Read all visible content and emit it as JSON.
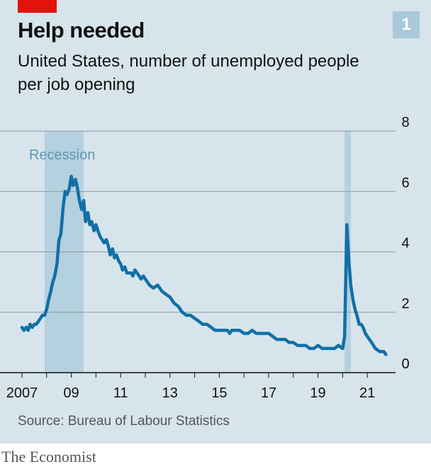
{
  "header": {
    "title": "Help needed",
    "subtitle": "United States, number of unemployed people per job opening",
    "badge": "1"
  },
  "footer": {
    "source": "Source: Bureau of Labour Statistics",
    "brand": "The Economist"
  },
  "colors": {
    "background": "#d7e4ec",
    "line": "#1170a6",
    "recession": "#a9c9da",
    "accent_red": "#e3120b"
  },
  "chart_data": {
    "type": "line",
    "title": "Help needed",
    "subtitle": "United States, number of unemployed people per job opening",
    "xlabel": "",
    "ylabel": "",
    "xlim": [
      2006.8,
      2021.8
    ],
    "ylim": [
      0,
      8
    ],
    "y_ticks": [
      0,
      2,
      4,
      6,
      8
    ],
    "y_tick_labels": [
      "0",
      "2",
      "4",
      "6",
      "8"
    ],
    "x_ticks": [
      2007,
      2009,
      2011,
      2013,
      2015,
      2017,
      2019,
      2021
    ],
    "x_tick_labels": [
      "2007",
      "09",
      "11",
      "13",
      "15",
      "17",
      "19",
      "21"
    ],
    "grid": true,
    "y_axis_side": "right",
    "recessions": [
      {
        "label": "Recession",
        "start": 2007.92,
        "end": 2009.5
      },
      {
        "label": "",
        "start": 2020.08,
        "end": 2020.33
      }
    ],
    "series": [
      {
        "x": [
          2007.0,
          2007.08,
          2007.17,
          2007.25,
          2007.33,
          2007.42,
          2007.5,
          2007.58,
          2007.67,
          2007.75,
          2007.83,
          2007.92,
          2008.0,
          2008.08,
          2008.17,
          2008.25,
          2008.33,
          2008.42,
          2008.5,
          2008.58,
          2008.67,
          2008.75,
          2008.83,
          2008.92,
          2009.0,
          2009.08,
          2009.17,
          2009.25,
          2009.33,
          2009.42,
          2009.5,
          2009.58,
          2009.67,
          2009.75,
          2009.83,
          2009.92,
          2010.0,
          2010.08,
          2010.17,
          2010.25,
          2010.33,
          2010.42,
          2010.5,
          2010.58,
          2010.67,
          2010.75,
          2010.83,
          2010.92,
          2011.0,
          2011.08,
          2011.17,
          2011.25,
          2011.33,
          2011.42,
          2011.5,
          2011.58,
          2011.67,
          2011.75,
          2011.83,
          2011.92,
          2012.0,
          2012.17,
          2012.33,
          2012.5,
          2012.67,
          2012.83,
          2013.0,
          2013.17,
          2013.33,
          2013.5,
          2013.67,
          2013.83,
          2014.0,
          2014.17,
          2014.33,
          2014.5,
          2014.67,
          2014.83,
          2015.0,
          2015.17,
          2015.33,
          2015.42,
          2015.5,
          2015.67,
          2015.83,
          2016.0,
          2016.17,
          2016.33,
          2016.5,
          2016.67,
          2016.83,
          2017.0,
          2017.17,
          2017.33,
          2017.5,
          2017.67,
          2017.83,
          2018.0,
          2018.17,
          2018.33,
          2018.5,
          2018.67,
          2018.83,
          2019.0,
          2019.17,
          2019.33,
          2019.5,
          2019.67,
          2019.83,
          2020.0,
          2020.08,
          2020.17,
          2020.25,
          2020.33,
          2020.42,
          2020.5,
          2020.58,
          2020.67,
          2020.75,
          2020.83,
          2020.92,
          2021.0,
          2021.17,
          2021.33,
          2021.5,
          2021.67,
          2021.75
        ],
        "values": [
          1.5,
          1.4,
          1.5,
          1.4,
          1.6,
          1.5,
          1.6,
          1.6,
          1.7,
          1.8,
          1.9,
          1.9,
          2.1,
          2.4,
          2.7,
          3.0,
          3.2,
          3.6,
          4.4,
          4.6,
          5.5,
          6.0,
          5.9,
          6.1,
          6.5,
          6.2,
          6.4,
          6.1,
          5.7,
          5.4,
          5.7,
          5.0,
          5.3,
          4.9,
          5.0,
          4.7,
          4.9,
          4.7,
          4.5,
          4.4,
          4.3,
          4.4,
          4.2,
          3.9,
          4.1,
          3.8,
          3.9,
          3.7,
          3.6,
          3.4,
          3.5,
          3.3,
          3.3,
          3.3,
          3.2,
          3.4,
          3.3,
          3.2,
          3.1,
          3.2,
          3.1,
          2.9,
          2.8,
          2.9,
          2.7,
          2.6,
          2.5,
          2.3,
          2.2,
          2.0,
          1.9,
          1.9,
          1.8,
          1.7,
          1.6,
          1.6,
          1.5,
          1.4,
          1.4,
          1.4,
          1.4,
          1.3,
          1.4,
          1.4,
          1.4,
          1.3,
          1.3,
          1.4,
          1.3,
          1.3,
          1.3,
          1.3,
          1.2,
          1.1,
          1.1,
          1.1,
          1.0,
          1.0,
          0.9,
          0.9,
          0.9,
          0.8,
          0.8,
          0.9,
          0.8,
          0.8,
          0.8,
          0.8,
          0.9,
          0.8,
          1.2,
          4.9,
          3.7,
          2.9,
          2.4,
          2.1,
          1.9,
          1.6,
          1.6,
          1.5,
          1.3,
          1.2,
          1.0,
          0.8,
          0.7,
          0.7,
          0.6
        ]
      }
    ]
  }
}
